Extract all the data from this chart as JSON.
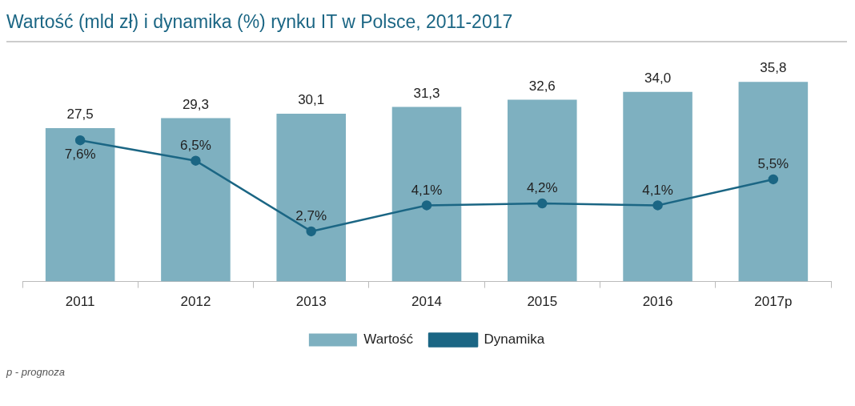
{
  "chart_data": {
    "type": "bar",
    "title": "Wartość (mld zł) i dynamika (%) rynku IT w Polsce, 2011-2017",
    "categories": [
      "2011",
      "2012",
      "2013",
      "2014",
      "2015",
      "2016",
      "2017p"
    ],
    "series": [
      {
        "name": "Wartość",
        "color": "#7eb0c0",
        "values": [
          27.5,
          29.3,
          30.1,
          31.3,
          32.6,
          34.0,
          35.8
        ],
        "value_labels": [
          "27,5",
          "29,3",
          "30,1",
          "31,3",
          "32,6",
          "34,0",
          "35,8"
        ]
      },
      {
        "name": "Dynamika",
        "type": "line",
        "axis": "y2",
        "color": "#1b6684",
        "marker": "circle",
        "values": [
          7.6,
          6.5,
          2.7,
          4.1,
          4.2,
          4.1,
          5.5
        ],
        "value_labels": [
          "7,6%",
          "6,5%",
          "2,7%",
          "4,1%",
          "4,2%",
          "4,1%",
          "5,5%"
        ]
      }
    ],
    "tick_labels": "x",
    "legend": "bottom",
    "annotations": [
      "p - prognoza"
    ]
  }
}
